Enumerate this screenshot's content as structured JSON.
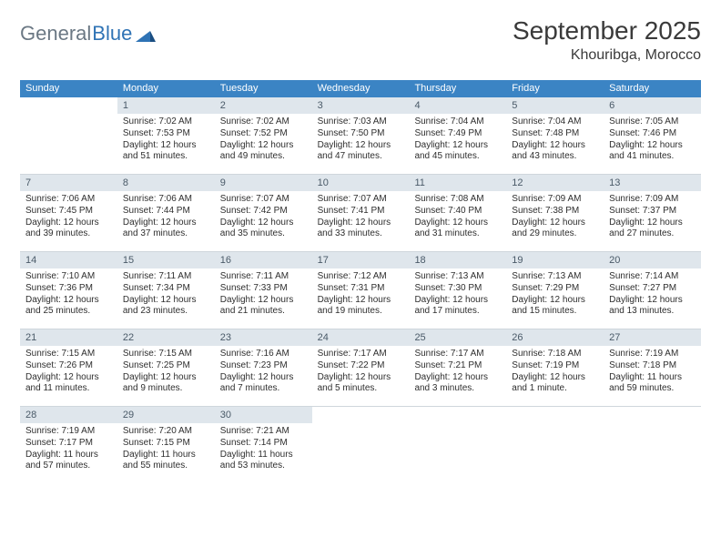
{
  "logo": {
    "word1": "General",
    "word2": "Blue"
  },
  "title": "September 2025",
  "subtitle": "Khouribga, Morocco",
  "colors": {
    "header_bar": "#3b84c4",
    "daynum_bg": "#dfe6ec",
    "row_border": "#cfd6dc",
    "text": "#2e2e2e",
    "logo_gray": "#6b7884",
    "logo_blue": "#2f73b5"
  },
  "day_names": [
    "Sunday",
    "Monday",
    "Tuesday",
    "Wednesday",
    "Thursday",
    "Friday",
    "Saturday"
  ],
  "weeks": [
    [
      null,
      {
        "n": "1",
        "sunrise": "7:02 AM",
        "sunset": "7:53 PM",
        "daylight": "12 hours and 51 minutes."
      },
      {
        "n": "2",
        "sunrise": "7:02 AM",
        "sunset": "7:52 PM",
        "daylight": "12 hours and 49 minutes."
      },
      {
        "n": "3",
        "sunrise": "7:03 AM",
        "sunset": "7:50 PM",
        "daylight": "12 hours and 47 minutes."
      },
      {
        "n": "4",
        "sunrise": "7:04 AM",
        "sunset": "7:49 PM",
        "daylight": "12 hours and 45 minutes."
      },
      {
        "n": "5",
        "sunrise": "7:04 AM",
        "sunset": "7:48 PM",
        "daylight": "12 hours and 43 minutes."
      },
      {
        "n": "6",
        "sunrise": "7:05 AM",
        "sunset": "7:46 PM",
        "daylight": "12 hours and 41 minutes."
      }
    ],
    [
      {
        "n": "7",
        "sunrise": "7:06 AM",
        "sunset": "7:45 PM",
        "daylight": "12 hours and 39 minutes."
      },
      {
        "n": "8",
        "sunrise": "7:06 AM",
        "sunset": "7:44 PM",
        "daylight": "12 hours and 37 minutes."
      },
      {
        "n": "9",
        "sunrise": "7:07 AM",
        "sunset": "7:42 PM",
        "daylight": "12 hours and 35 minutes."
      },
      {
        "n": "10",
        "sunrise": "7:07 AM",
        "sunset": "7:41 PM",
        "daylight": "12 hours and 33 minutes."
      },
      {
        "n": "11",
        "sunrise": "7:08 AM",
        "sunset": "7:40 PM",
        "daylight": "12 hours and 31 minutes."
      },
      {
        "n": "12",
        "sunrise": "7:09 AM",
        "sunset": "7:38 PM",
        "daylight": "12 hours and 29 minutes."
      },
      {
        "n": "13",
        "sunrise": "7:09 AM",
        "sunset": "7:37 PM",
        "daylight": "12 hours and 27 minutes."
      }
    ],
    [
      {
        "n": "14",
        "sunrise": "7:10 AM",
        "sunset": "7:36 PM",
        "daylight": "12 hours and 25 minutes."
      },
      {
        "n": "15",
        "sunrise": "7:11 AM",
        "sunset": "7:34 PM",
        "daylight": "12 hours and 23 minutes."
      },
      {
        "n": "16",
        "sunrise": "7:11 AM",
        "sunset": "7:33 PM",
        "daylight": "12 hours and 21 minutes."
      },
      {
        "n": "17",
        "sunrise": "7:12 AM",
        "sunset": "7:31 PM",
        "daylight": "12 hours and 19 minutes."
      },
      {
        "n": "18",
        "sunrise": "7:13 AM",
        "sunset": "7:30 PM",
        "daylight": "12 hours and 17 minutes."
      },
      {
        "n": "19",
        "sunrise": "7:13 AM",
        "sunset": "7:29 PM",
        "daylight": "12 hours and 15 minutes."
      },
      {
        "n": "20",
        "sunrise": "7:14 AM",
        "sunset": "7:27 PM",
        "daylight": "12 hours and 13 minutes."
      }
    ],
    [
      {
        "n": "21",
        "sunrise": "7:15 AM",
        "sunset": "7:26 PM",
        "daylight": "12 hours and 11 minutes."
      },
      {
        "n": "22",
        "sunrise": "7:15 AM",
        "sunset": "7:25 PM",
        "daylight": "12 hours and 9 minutes."
      },
      {
        "n": "23",
        "sunrise": "7:16 AM",
        "sunset": "7:23 PM",
        "daylight": "12 hours and 7 minutes."
      },
      {
        "n": "24",
        "sunrise": "7:17 AM",
        "sunset": "7:22 PM",
        "daylight": "12 hours and 5 minutes."
      },
      {
        "n": "25",
        "sunrise": "7:17 AM",
        "sunset": "7:21 PM",
        "daylight": "12 hours and 3 minutes."
      },
      {
        "n": "26",
        "sunrise": "7:18 AM",
        "sunset": "7:19 PM",
        "daylight": "12 hours and 1 minute."
      },
      {
        "n": "27",
        "sunrise": "7:19 AM",
        "sunset": "7:18 PM",
        "daylight": "11 hours and 59 minutes."
      }
    ],
    [
      {
        "n": "28",
        "sunrise": "7:19 AM",
        "sunset": "7:17 PM",
        "daylight": "11 hours and 57 minutes."
      },
      {
        "n": "29",
        "sunrise": "7:20 AM",
        "sunset": "7:15 PM",
        "daylight": "11 hours and 55 minutes."
      },
      {
        "n": "30",
        "sunrise": "7:21 AM",
        "sunset": "7:14 PM",
        "daylight": "11 hours and 53 minutes."
      },
      null,
      null,
      null,
      null
    ]
  ],
  "labels": {
    "sunrise": "Sunrise:",
    "sunset": "Sunset:",
    "daylight": "Daylight:"
  }
}
